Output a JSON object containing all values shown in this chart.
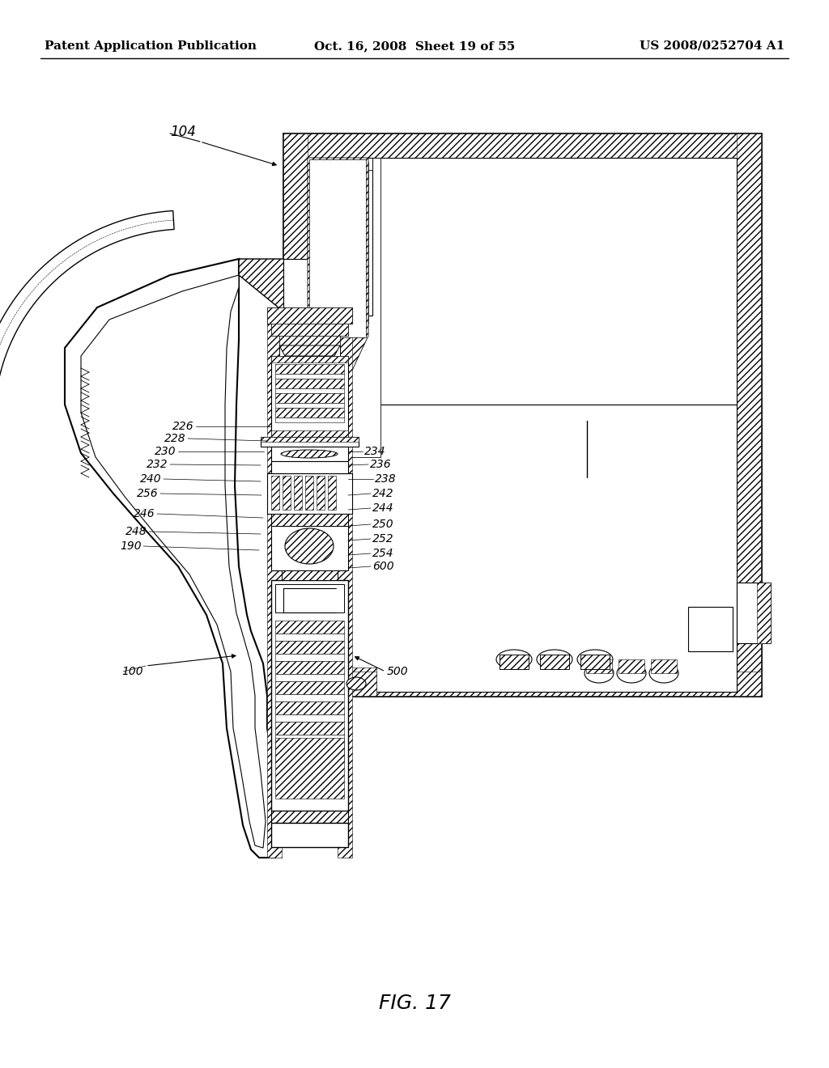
{
  "background_color": "#ffffff",
  "header_left": "Patent Application Publication",
  "header_center": "Oct. 16, 2008  Sheet 19 of 55",
  "header_right": "US 2008/0252704 A1",
  "figure_label": "FIG. 17",
  "label_104": "104",
  "label_100": "100",
  "label_500": "500",
  "font_size_header": 11,
  "font_size_label": 10,
  "font_size_fig": 18
}
